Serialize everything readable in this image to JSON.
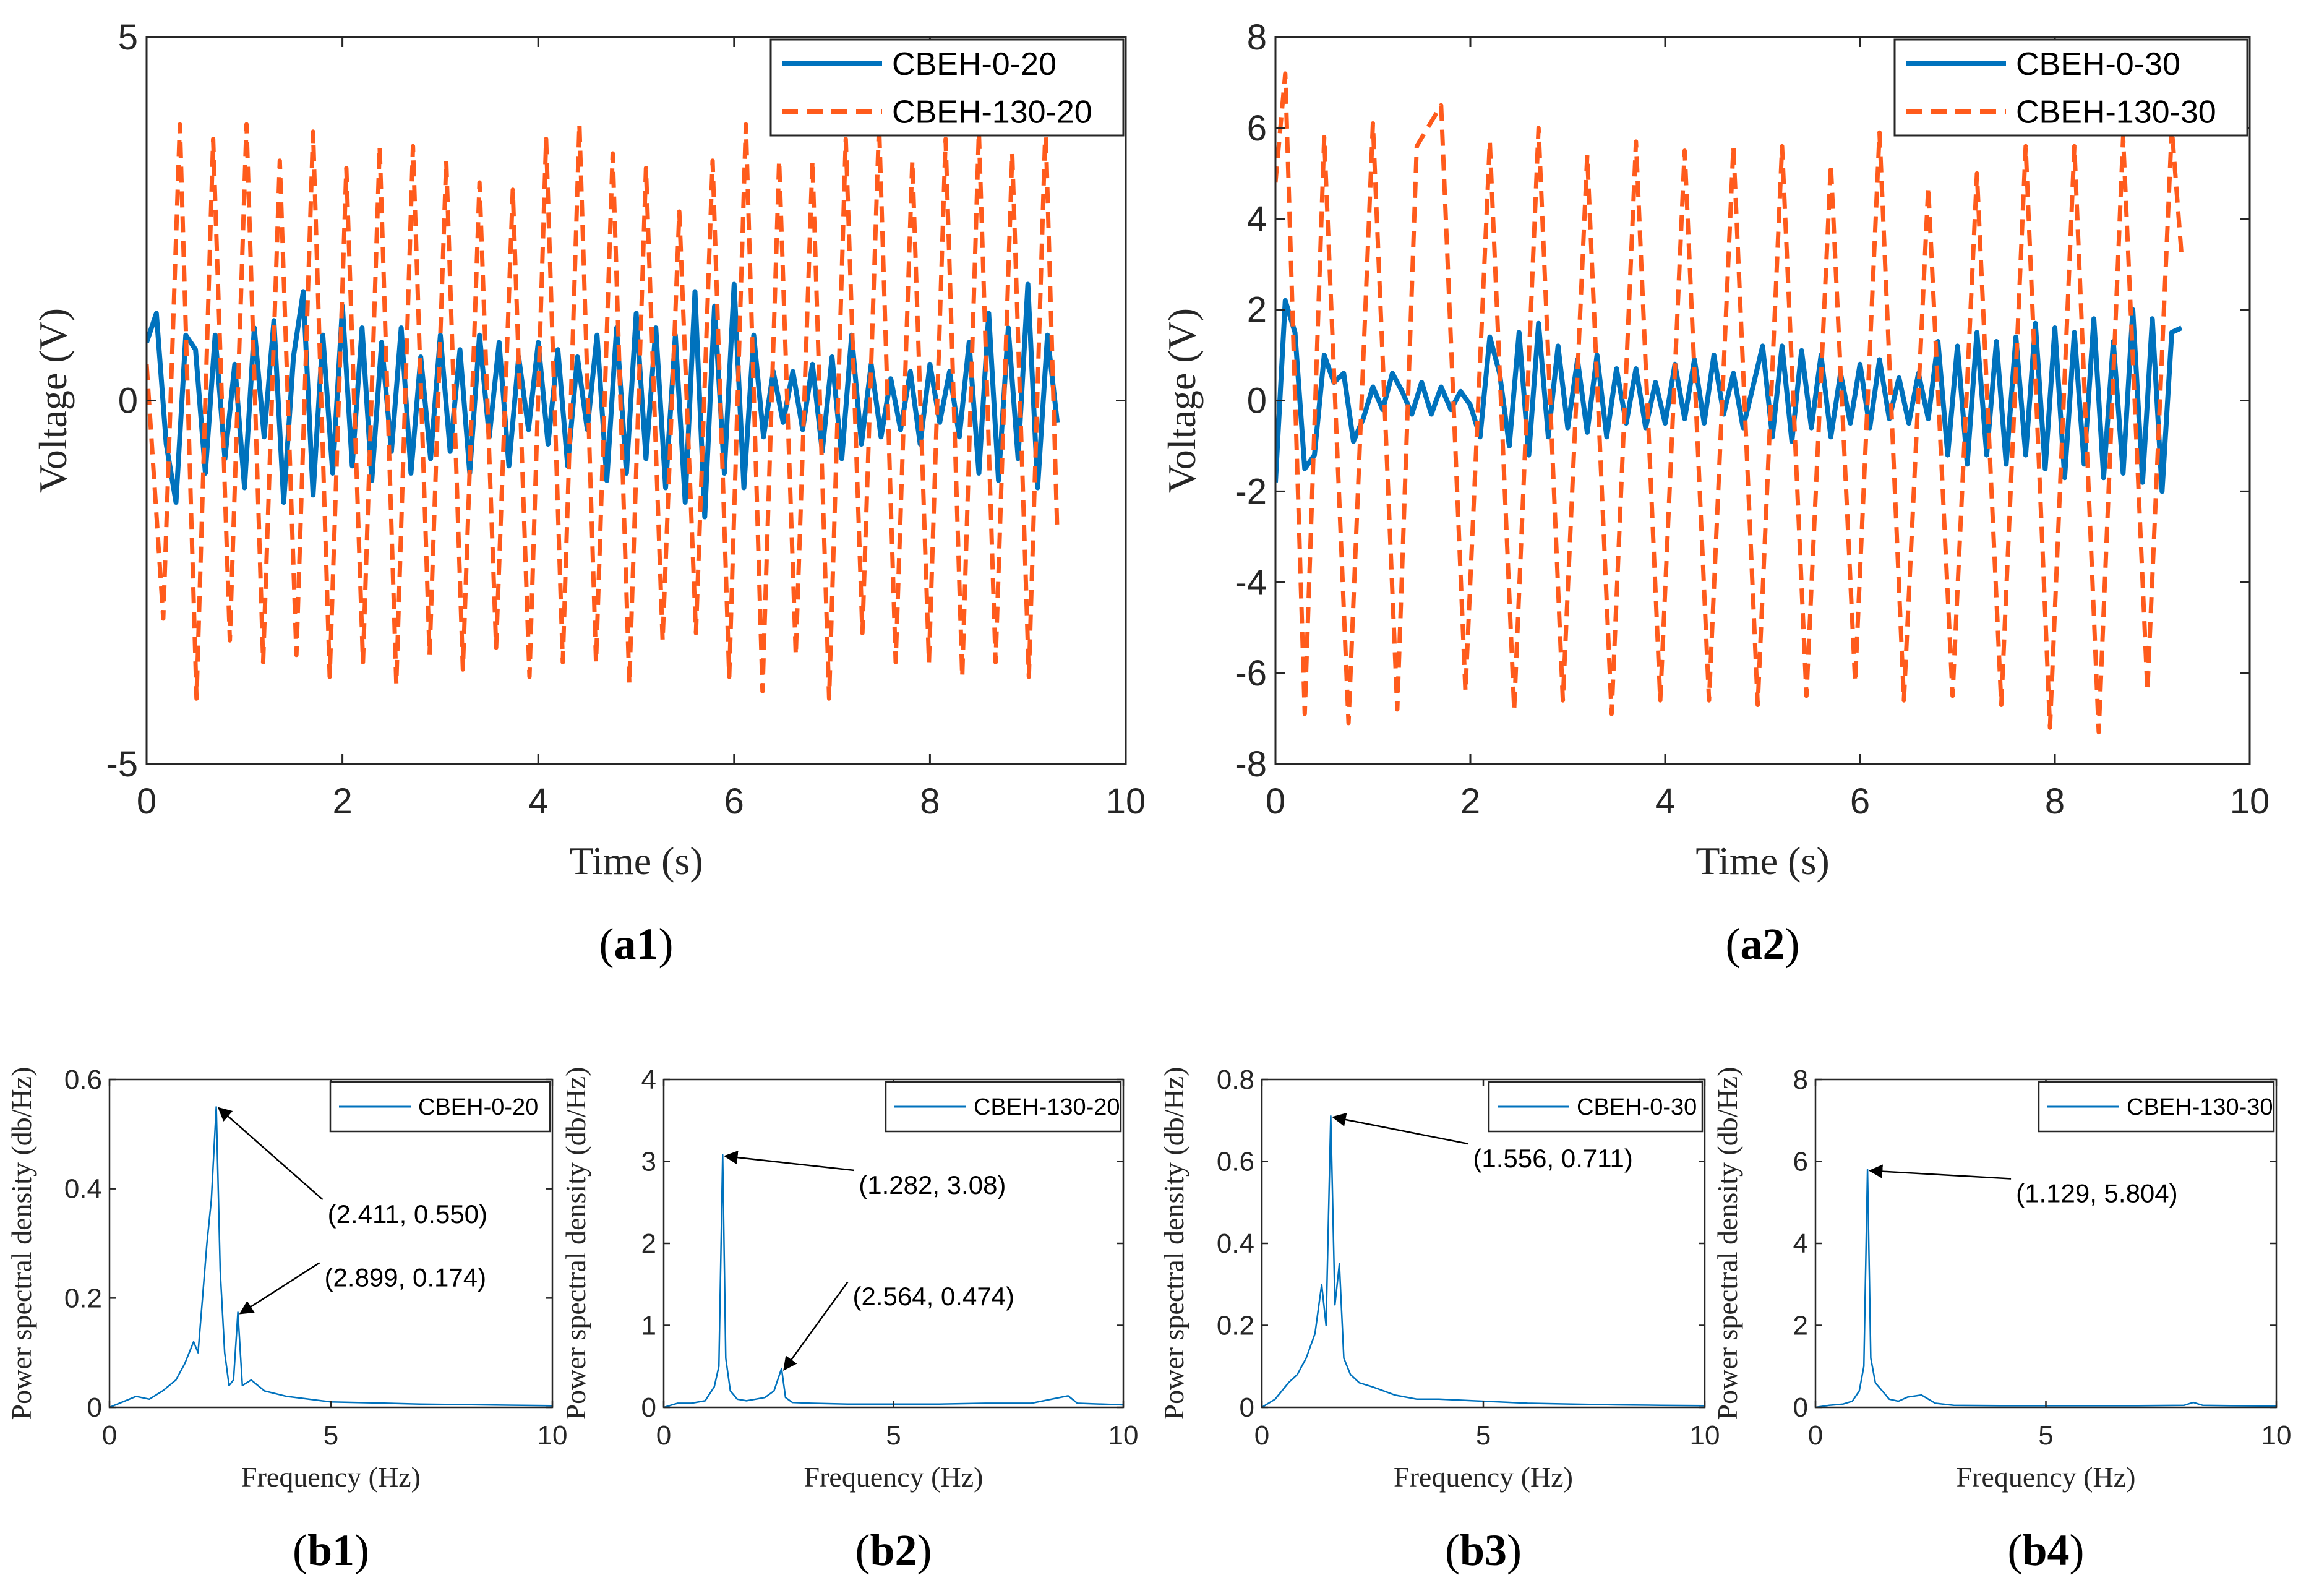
{
  "colors": {
    "series_blue": "#0072BD",
    "series_orange": "#FF5B1C",
    "axis": "#262626"
  },
  "chart_data": [
    {
      "id": "a1",
      "type": "line",
      "panel_label_prefix": "(",
      "panel_label_bold": "a1",
      "panel_label_suffix": ")",
      "xlabel": "Time (s)",
      "ylabel": "Voltage (V)",
      "xlim": [
        0,
        10
      ],
      "ylim": [
        -5,
        5
      ],
      "xticks": [
        0,
        2,
        4,
        6,
        8,
        10
      ],
      "xtick_labels": [
        "0",
        "2",
        "4",
        "6",
        "8",
        "10"
      ],
      "yticks": [
        -5,
        0,
        5
      ],
      "ytick_labels": [
        "-5",
        "0",
        "5"
      ],
      "legend_position": "top-right",
      "series": [
        {
          "name": "CBEH-0-20",
          "style": "solid",
          "color": "#0072BD",
          "x": [
            0,
            0.1,
            0.2,
            0.3,
            0.4,
            0.5,
            0.6,
            0.7,
            0.8,
            0.9,
            1.0,
            1.1,
            1.2,
            1.3,
            1.4,
            1.5,
            1.6,
            1.7,
            1.8,
            1.9,
            2.0,
            2.1,
            2.2,
            2.3,
            2.4,
            2.5,
            2.6,
            2.7,
            2.8,
            2.9,
            3.0,
            3.1,
            3.2,
            3.3,
            3.4,
            3.5,
            3.6,
            3.7,
            3.8,
            3.9,
            4.0,
            4.1,
            4.2,
            4.3,
            4.4,
            4.5,
            4.6,
            4.7,
            4.8,
            4.9,
            5.0,
            5.1,
            5.2,
            5.3,
            5.4,
            5.5,
            5.6,
            5.7,
            5.8,
            5.9,
            6.0,
            6.1,
            6.2,
            6.3,
            6.4,
            6.5,
            6.6,
            6.7,
            6.8,
            6.9,
            7.0,
            7.1,
            7.2,
            7.3,
            7.4,
            7.5,
            7.6,
            7.7,
            7.8,
            7.9,
            8.0,
            8.1,
            8.2,
            8.3,
            8.4,
            8.5,
            8.6,
            8.7,
            8.8,
            8.9,
            9.0,
            9.1,
            9.2,
            9.3
          ],
          "y": [
            0.8,
            1.2,
            -0.6,
            -1.4,
            0.9,
            0.7,
            -1.0,
            0.9,
            -0.8,
            0.5,
            -1.2,
            1.0,
            -0.5,
            1.1,
            -1.4,
            0.6,
            1.5,
            -1.3,
            0.9,
            -1.0,
            1.3,
            -0.9,
            1.0,
            -1.1,
            0.8,
            -0.7,
            1.0,
            -1.0,
            0.6,
            -0.8,
            0.9,
            -0.7,
            0.7,
            -1.0,
            0.9,
            -0.5,
            0.8,
            -0.9,
            0.6,
            -0.4,
            0.8,
            -0.6,
            0.7,
            -0.9,
            0.6,
            -0.4,
            0.9,
            -1.1,
            1.0,
            -1.0,
            1.2,
            -0.8,
            1.0,
            -1.2,
            0.9,
            -1.4,
            1.5,
            -1.6,
            1.3,
            -1.0,
            1.6,
            -1.2,
            0.9,
            -0.5,
            0.4,
            -0.3,
            0.4,
            -0.4,
            0.5,
            -0.7,
            0.6,
            -0.8,
            0.9,
            -0.6,
            0.5,
            -0.5,
            0.3,
            -0.4,
            0.4,
            -0.6,
            0.5,
            -0.3,
            0.4,
            -0.5,
            0.8,
            -1.0,
            1.2,
            -1.1,
            1.0,
            -0.8,
            1.6,
            -1.2,
            0.9,
            -0.3
          ]
        },
        {
          "name": "CBEH-130-20",
          "style": "dashed",
          "color": "#FF5B1C",
          "x": [
            0,
            0.17,
            0.34,
            0.51,
            0.68,
            0.85,
            1.02,
            1.19,
            1.36,
            1.53,
            1.7,
            1.87,
            2.04,
            2.21,
            2.38,
            2.55,
            2.72,
            2.89,
            3.06,
            3.23,
            3.4,
            3.57,
            3.74,
            3.91,
            4.08,
            4.25,
            4.42,
            4.59,
            4.76,
            4.93,
            5.1,
            5.27,
            5.44,
            5.61,
            5.78,
            5.95,
            6.12,
            6.29,
            6.46,
            6.63,
            6.8,
            6.97,
            7.14,
            7.31,
            7.48,
            7.65,
            7.82,
            7.99,
            8.16,
            8.33,
            8.5,
            8.67,
            8.84,
            9.01,
            9.18,
            9.3
          ],
          "y": [
            0.5,
            -3.0,
            3.8,
            -4.1,
            3.6,
            -3.3,
            3.8,
            -3.6,
            3.3,
            -3.5,
            3.7,
            -3.8,
            3.2,
            -3.6,
            3.5,
            -3.9,
            3.5,
            -3.5,
            3.3,
            -3.7,
            3.0,
            -3.4,
            2.9,
            -3.8,
            3.6,
            -3.6,
            3.8,
            -3.6,
            3.4,
            -3.9,
            3.2,
            -3.3,
            2.6,
            -3.2,
            3.3,
            -3.8,
            3.8,
            -4.0,
            3.3,
            -3.5,
            3.3,
            -4.1,
            3.6,
            -3.2,
            3.8,
            -3.6,
            3.3,
            -3.6,
            3.6,
            -3.8,
            3.7,
            -3.6,
            3.4,
            -3.8,
            3.8,
            -1.8
          ]
        }
      ]
    },
    {
      "id": "a2",
      "type": "line",
      "panel_label_prefix": "(",
      "panel_label_bold": "a2",
      "panel_label_suffix": ")",
      "xlabel": "Time (s)",
      "ylabel": "Voltage (V)",
      "xlim": [
        0,
        10
      ],
      "ylim": [
        -8,
        8
      ],
      "xticks": [
        0,
        2,
        4,
        6,
        8,
        10
      ],
      "xtick_labels": [
        "0",
        "2",
        "4",
        "6",
        "8",
        "10"
      ],
      "yticks": [
        -8,
        -6,
        -4,
        -2,
        0,
        2,
        4,
        6,
        8
      ],
      "ytick_labels": [
        "-8",
        "-6",
        "-4",
        "-2",
        "0",
        "2",
        "4",
        "6",
        "8"
      ],
      "legend_position": "top-right",
      "series": [
        {
          "name": "CBEH-0-30",
          "style": "solid",
          "color": "#0072BD",
          "x": [
            0,
            0.1,
            0.2,
            0.3,
            0.4,
            0.5,
            0.6,
            0.7,
            0.8,
            0.9,
            1.0,
            1.1,
            1.2,
            1.3,
            1.4,
            1.5,
            1.6,
            1.7,
            1.8,
            1.9,
            2.0,
            2.1,
            2.2,
            2.3,
            2.4,
            2.5,
            2.6,
            2.7,
            2.8,
            2.9,
            3.0,
            3.1,
            3.2,
            3.3,
            3.4,
            3.5,
            3.6,
            3.7,
            3.8,
            3.9,
            4.0,
            4.1,
            4.2,
            4.3,
            4.4,
            4.5,
            4.6,
            4.7,
            4.8,
            4.9,
            5.0,
            5.1,
            5.2,
            5.3,
            5.4,
            5.5,
            5.6,
            5.7,
            5.8,
            5.9,
            6.0,
            6.1,
            6.2,
            6.3,
            6.4,
            6.5,
            6.6,
            6.7,
            6.8,
            6.9,
            7.0,
            7.1,
            7.2,
            7.3,
            7.4,
            7.5,
            7.6,
            7.7,
            7.8,
            7.9,
            8.0,
            8.1,
            8.2,
            8.3,
            8.4,
            8.5,
            8.6,
            8.7,
            8.8,
            8.9,
            9.0,
            9.1,
            9.2,
            9.3
          ],
          "y": [
            -1.8,
            2.2,
            1.5,
            -1.5,
            -1.2,
            1.0,
            0.4,
            0.6,
            -0.9,
            -0.4,
            0.3,
            -0.2,
            0.6,
            0.2,
            -0.3,
            0.4,
            -0.3,
            0.3,
            -0.2,
            0.2,
            -0.1,
            -0.8,
            1.4,
            0.6,
            -1.0,
            1.5,
            -1.2,
            1.7,
            -0.8,
            1.2,
            -0.6,
            0.9,
            -0.7,
            1.0,
            -0.8,
            0.7,
            -0.5,
            0.7,
            -0.6,
            0.4,
            -0.5,
            0.8,
            -0.4,
            0.9,
            -0.5,
            1.0,
            -0.3,
            0.6,
            -0.6,
            0.3,
            1.2,
            -0.8,
            1.2,
            -0.9,
            1.1,
            -0.6,
            1.0,
            -0.8,
            0.6,
            -0.5,
            0.8,
            -0.6,
            0.9,
            -0.4,
            0.5,
            -0.5,
            0.6,
            -0.4,
            1.3,
            -1.2,
            1.2,
            -1.4,
            1.5,
            -1.2,
            1.3,
            -1.4,
            1.4,
            -1.2,
            1.7,
            -1.5,
            1.6,
            -1.7,
            1.5,
            -1.4,
            1.8,
            -1.7,
            1.3,
            -1.6,
            2.0,
            -1.8,
            1.8,
            -2.0,
            1.5,
            1.6
          ]
        },
        {
          "name": "CBEH-130-30",
          "style": "dashed",
          "color": "#FF5B1C",
          "x": [
            0,
            0.1,
            0.3,
            0.5,
            0.75,
            1.0,
            1.25,
            1.45,
            1.7,
            1.95,
            2.2,
            2.45,
            2.7,
            2.95,
            3.2,
            3.45,
            3.7,
            3.95,
            4.2,
            4.45,
            4.7,
            4.95,
            5.2,
            5.45,
            5.7,
            5.95,
            6.2,
            6.45,
            6.7,
            6.95,
            7.2,
            7.45,
            7.7,
            7.95,
            8.2,
            8.45,
            8.7,
            8.95,
            9.2,
            9.3
          ],
          "y": [
            4.8,
            7.2,
            -6.9,
            5.8,
            -7.1,
            6.1,
            -6.8,
            5.6,
            6.5,
            -6.4,
            5.7,
            -6.8,
            6.0,
            -6.6,
            5.4,
            -6.9,
            5.7,
            -6.6,
            5.5,
            -6.6,
            5.6,
            -6.7,
            5.6,
            -6.5,
            5.2,
            -6.2,
            5.9,
            -6.6,
            4.7,
            -6.5,
            5.0,
            -6.7,
            5.6,
            -7.2,
            5.6,
            -7.3,
            5.8,
            -6.4,
            6.0,
            3.2
          ]
        }
      ]
    },
    {
      "id": "b1",
      "type": "line",
      "panel_label_prefix": "(",
      "panel_label_bold": "b1",
      "panel_label_suffix": ")",
      "xlabel": "Frequency (Hz)",
      "ylabel": "Power spectral density (db/Hz)",
      "xlim": [
        0,
        10
      ],
      "ylim": [
        0,
        0.6
      ],
      "xticks": [
        0,
        5,
        10
      ],
      "xtick_labels": [
        "0",
        "5",
        "10"
      ],
      "yticks": [
        0,
        0.2,
        0.4,
        0.6
      ],
      "ytick_labels": [
        "0",
        "0.2",
        "0.4",
        "0.6"
      ],
      "legend_position": "top-right",
      "series": [
        {
          "name": "CBEH-0-20",
          "color": "#0072BD",
          "x": [
            0,
            0.3,
            0.6,
            0.9,
            1.2,
            1.5,
            1.7,
            1.9,
            2.0,
            2.1,
            2.2,
            2.3,
            2.411,
            2.5,
            2.6,
            2.7,
            2.8,
            2.899,
            3.0,
            3.2,
            3.5,
            4.0,
            4.5,
            5.0,
            6.0,
            7.0,
            8.0,
            9.0,
            10.0
          ],
          "y": [
            0.0,
            0.01,
            0.02,
            0.015,
            0.03,
            0.05,
            0.08,
            0.12,
            0.1,
            0.2,
            0.3,
            0.38,
            0.55,
            0.25,
            0.1,
            0.04,
            0.05,
            0.174,
            0.04,
            0.05,
            0.03,
            0.02,
            0.015,
            0.01,
            0.008,
            0.006,
            0.005,
            0.004,
            0.003
          ]
        }
      ],
      "annotations": [
        {
          "label": "(2.411, 0.550)",
          "x": 2.411,
          "y": 0.55
        },
        {
          "label": "(2.899, 0.174)",
          "x": 2.899,
          "y": 0.174
        }
      ]
    },
    {
      "id": "b2",
      "type": "line",
      "panel_label_prefix": "(",
      "panel_label_bold": "b2",
      "panel_label_suffix": ")",
      "xlabel": "Frequency (Hz)",
      "ylabel": "Power spectral density (db/Hz)",
      "xlim": [
        0,
        10
      ],
      "ylim": [
        0,
        4
      ],
      "xticks": [
        0,
        5,
        10
      ],
      "xtick_labels": [
        "0",
        "5",
        "10"
      ],
      "yticks": [
        0,
        1,
        2,
        3,
        4
      ],
      "ytick_labels": [
        "0",
        "1",
        "2",
        "3",
        "4"
      ],
      "legend_position": "top-right",
      "series": [
        {
          "name": "CBEH-130-20",
          "color": "#0072BD",
          "x": [
            0,
            0.3,
            0.6,
            0.9,
            1.1,
            1.2,
            1.282,
            1.35,
            1.45,
            1.6,
            1.8,
            2.0,
            2.2,
            2.4,
            2.564,
            2.65,
            2.8,
            3.2,
            4.0,
            5.0,
            6.0,
            7.0,
            8.0,
            8.8,
            9.0,
            10.0
          ],
          "y": [
            0.0,
            0.05,
            0.05,
            0.08,
            0.25,
            0.5,
            3.08,
            0.6,
            0.2,
            0.1,
            0.08,
            0.1,
            0.12,
            0.2,
            0.474,
            0.12,
            0.06,
            0.05,
            0.04,
            0.04,
            0.04,
            0.05,
            0.05,
            0.14,
            0.05,
            0.03
          ]
        }
      ],
      "annotations": [
        {
          "label": "(1.282, 3.08)",
          "x": 1.282,
          "y": 3.08
        },
        {
          "label": "(2.564, 0.474)",
          "x": 2.564,
          "y": 0.474
        }
      ]
    },
    {
      "id": "b3",
      "type": "line",
      "panel_label_prefix": "(",
      "panel_label_bold": "b3",
      "panel_label_suffix": ")",
      "xlabel": "Frequency (Hz)",
      "ylabel": "Power spectral density (db/Hz)",
      "xlim": [
        0,
        10
      ],
      "ylim": [
        0,
        0.8
      ],
      "xticks": [
        0,
        5,
        10
      ],
      "xtick_labels": [
        "0",
        "5",
        "10"
      ],
      "yticks": [
        0,
        0.2,
        0.4,
        0.6,
        0.8
      ],
      "ytick_labels": [
        "0",
        "0.2",
        "0.4",
        "0.6",
        "0.8"
      ],
      "legend_position": "top-right",
      "series": [
        {
          "name": "CBEH-0-30",
          "color": "#0072BD",
          "x": [
            0,
            0.3,
            0.6,
            0.8,
            1.0,
            1.2,
            1.35,
            1.45,
            1.556,
            1.65,
            1.75,
            1.85,
            2.0,
            2.2,
            2.5,
            3.0,
            3.5,
            4.0,
            5.0,
            6.0,
            7.0,
            8.0,
            9.0,
            10.0
          ],
          "y": [
            0.0,
            0.02,
            0.06,
            0.08,
            0.12,
            0.18,
            0.3,
            0.2,
            0.711,
            0.25,
            0.35,
            0.12,
            0.08,
            0.06,
            0.05,
            0.03,
            0.02,
            0.02,
            0.015,
            0.01,
            0.008,
            0.006,
            0.005,
            0.004
          ]
        }
      ],
      "annotations": [
        {
          "label": "(1.556, 0.711)",
          "x": 1.556,
          "y": 0.711
        }
      ]
    },
    {
      "id": "b4",
      "type": "line",
      "panel_label_prefix": "(",
      "panel_label_bold": "b4",
      "panel_label_suffix": ")",
      "xlabel": "Frequency (Hz)",
      "ylabel": "Power spectral density (db/Hz)",
      "xlim": [
        0,
        10
      ],
      "ylim": [
        0,
        8
      ],
      "xticks": [
        0,
        5,
        10
      ],
      "xtick_labels": [
        "0",
        "5",
        "10"
      ],
      "yticks": [
        0,
        2,
        4,
        6,
        8
      ],
      "ytick_labels": [
        "0",
        "2",
        "4",
        "6",
        "8"
      ],
      "legend_position": "top-right",
      "series": [
        {
          "name": "CBEH-130-30",
          "color": "#0072BD",
          "x": [
            0,
            0.3,
            0.6,
            0.8,
            0.95,
            1.05,
            1.129,
            1.2,
            1.3,
            1.45,
            1.6,
            1.8,
            2.0,
            2.3,
            2.6,
            3.0,
            4.0,
            5.0,
            6.0,
            7.0,
            8.0,
            8.2,
            8.4,
            9.0,
            10.0
          ],
          "y": [
            0.0,
            0.05,
            0.08,
            0.15,
            0.4,
            1.0,
            5.804,
            1.2,
            0.6,
            0.4,
            0.2,
            0.15,
            0.25,
            0.3,
            0.1,
            0.05,
            0.04,
            0.04,
            0.04,
            0.04,
            0.05,
            0.12,
            0.05,
            0.04,
            0.03
          ]
        }
      ],
      "annotations": [
        {
          "label": "(1.129, 5.804)",
          "x": 1.129,
          "y": 5.804
        }
      ]
    }
  ]
}
